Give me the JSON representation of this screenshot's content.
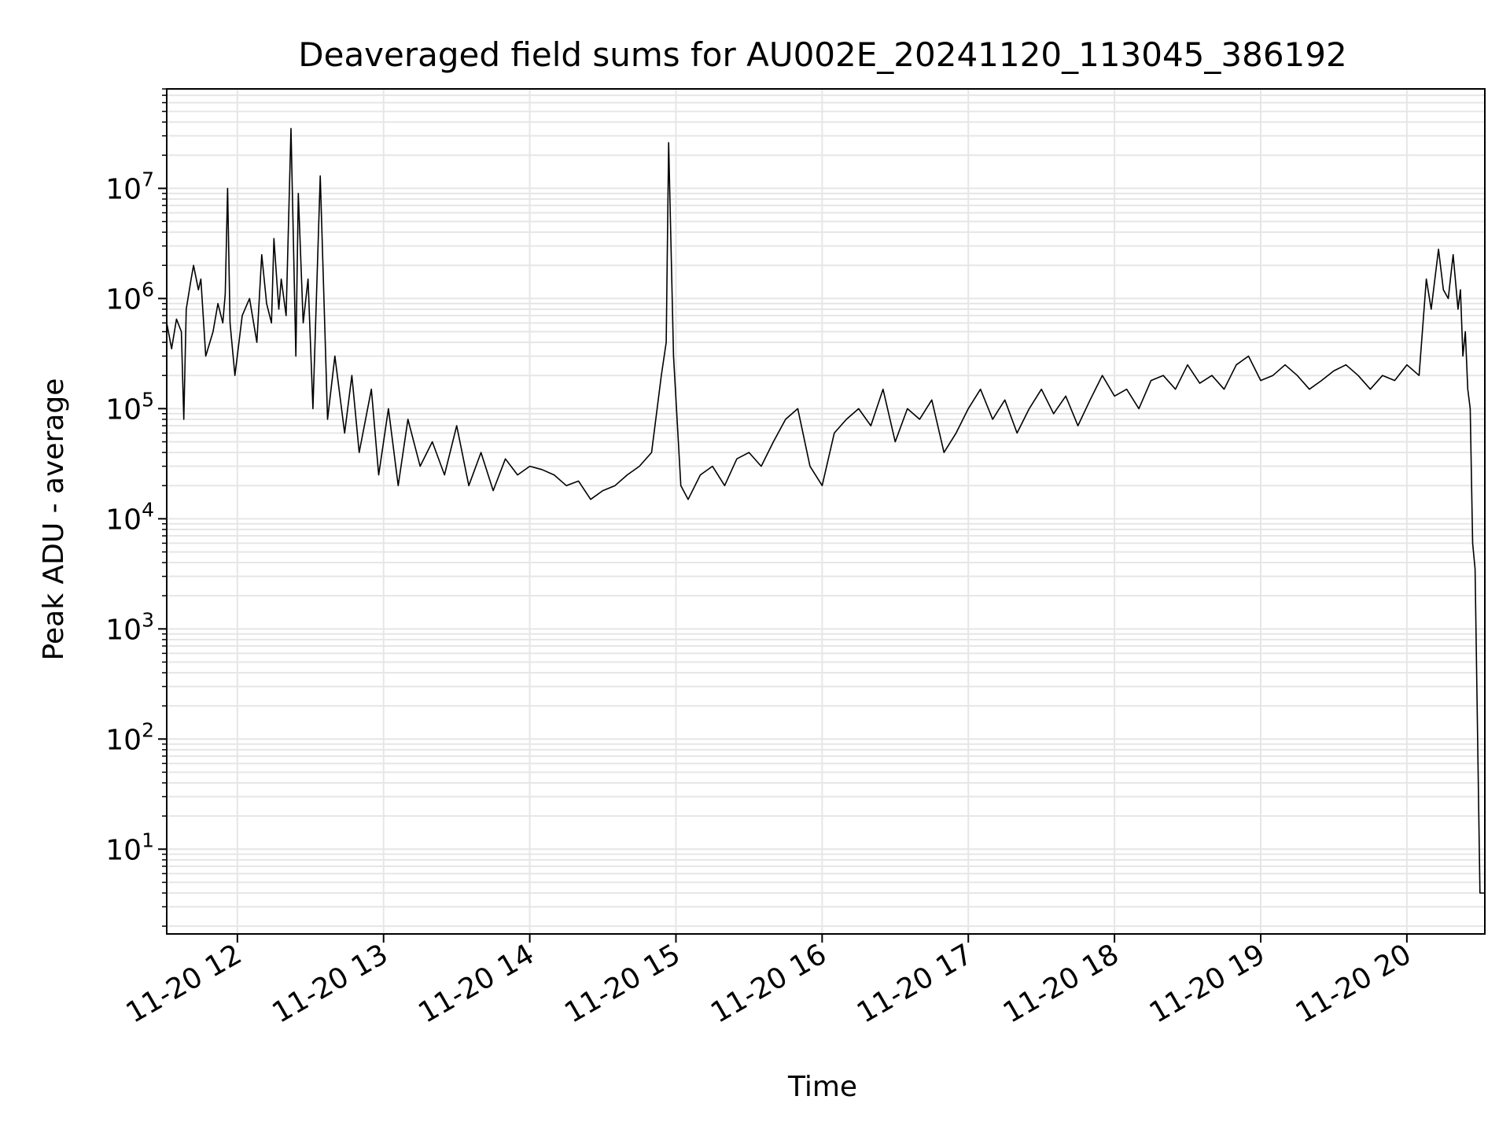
{
  "chart_data": {
    "type": "line",
    "title": "Deaveraged field sums for AU002E_20241120_113045_386192",
    "xlabel": "Time",
    "ylabel": "Peak ADU - average",
    "yscale": "log",
    "ylim": [
      1.7,
      80000000
    ],
    "xlim": [
      "2024-11-20 11:31",
      "2024-11-20 20:32"
    ],
    "grid": true,
    "line_color": "#000000",
    "grid_color": "#e6e6e6",
    "x_tick_labels": [
      "11-20 12",
      "11-20 13",
      "11-20 14",
      "11-20 15",
      "11-20 16",
      "11-20 17",
      "11-20 18",
      "11-20 19",
      "11-20 20"
    ],
    "x_tick_values": [
      "2024-11-20 12:00",
      "2024-11-20 13:00",
      "2024-11-20 14:00",
      "2024-11-20 15:00",
      "2024-11-20 16:00",
      "2024-11-20 17:00",
      "2024-11-20 18:00",
      "2024-11-20 19:00",
      "2024-11-20 20:00"
    ],
    "y_tick_values": [
      10,
      100,
      1000,
      10000,
      100000,
      1000000,
      10000000
    ],
    "y_tick_labels": [
      {
        "base": "10",
        "exp": "1"
      },
      {
        "base": "10",
        "exp": "2"
      },
      {
        "base": "10",
        "exp": "3"
      },
      {
        "base": "10",
        "exp": "4"
      },
      {
        "base": "10",
        "exp": "5"
      },
      {
        "base": "10",
        "exp": "6"
      },
      {
        "base": "10",
        "exp": "7"
      }
    ],
    "series": [
      {
        "x": [
          "2024-11-20 11:31",
          "2024-11-20 11:33",
          "2024-11-20 11:35",
          "2024-11-20 11:37",
          "2024-11-20 11:38",
          "2024-11-20 11:39",
          "2024-11-20 11:41",
          "2024-11-20 11:42",
          "2024-11-20 11:44",
          "2024-11-20 11:45",
          "2024-11-20 11:47",
          "2024-11-20 11:50",
          "2024-11-20 11:52",
          "2024-11-20 11:54",
          "2024-11-20 11:55",
          "2024-11-20 11:56",
          "2024-11-20 11:57",
          "2024-11-20 11:59",
          "2024-11-20 12:02",
          "2024-11-20 12:05",
          "2024-11-20 12:08",
          "2024-11-20 12:10",
          "2024-11-20 12:12",
          "2024-11-20 12:14",
          "2024-11-20 12:15",
          "2024-11-20 12:17",
          "2024-11-20 12:18",
          "2024-11-20 12:20",
          "2024-11-20 12:22",
          "2024-11-20 12:24",
          "2024-11-20 12:25",
          "2024-11-20 12:27",
          "2024-11-20 12:29",
          "2024-11-20 12:31",
          "2024-11-20 12:34",
          "2024-11-20 12:37",
          "2024-11-20 12:40",
          "2024-11-20 12:44",
          "2024-11-20 12:47",
          "2024-11-20 12:50",
          "2024-11-20 12:55",
          "2024-11-20 12:58",
          "2024-11-20 13:02",
          "2024-11-20 13:06",
          "2024-11-20 13:10",
          "2024-11-20 13:15",
          "2024-11-20 13:20",
          "2024-11-20 13:25",
          "2024-11-20 13:30",
          "2024-11-20 13:35",
          "2024-11-20 13:40",
          "2024-11-20 13:45",
          "2024-11-20 13:50",
          "2024-11-20 13:55",
          "2024-11-20 14:00",
          "2024-11-20 14:05",
          "2024-11-20 14:10",
          "2024-11-20 14:15",
          "2024-11-20 14:20",
          "2024-11-20 14:25",
          "2024-11-20 14:30",
          "2024-11-20 14:35",
          "2024-11-20 14:40",
          "2024-11-20 14:45",
          "2024-11-20 14:50",
          "2024-11-20 14:54",
          "2024-11-20 14:56",
          "2024-11-20 14:57",
          "2024-11-20 14:59",
          "2024-11-20 15:02",
          "2024-11-20 15:05",
          "2024-11-20 15:10",
          "2024-11-20 15:15",
          "2024-11-20 15:20",
          "2024-11-20 15:25",
          "2024-11-20 15:30",
          "2024-11-20 15:35",
          "2024-11-20 15:40",
          "2024-11-20 15:45",
          "2024-11-20 15:50",
          "2024-11-20 15:55",
          "2024-11-20 16:00",
          "2024-11-20 16:05",
          "2024-11-20 16:10",
          "2024-11-20 16:15",
          "2024-11-20 16:20",
          "2024-11-20 16:25",
          "2024-11-20 16:30",
          "2024-11-20 16:35",
          "2024-11-20 16:40",
          "2024-11-20 16:45",
          "2024-11-20 16:50",
          "2024-11-20 16:55",
          "2024-11-20 17:00",
          "2024-11-20 17:05",
          "2024-11-20 17:10",
          "2024-11-20 17:15",
          "2024-11-20 17:20",
          "2024-11-20 17:25",
          "2024-11-20 17:30",
          "2024-11-20 17:35",
          "2024-11-20 17:40",
          "2024-11-20 17:45",
          "2024-11-20 17:50",
          "2024-11-20 17:55",
          "2024-11-20 18:00",
          "2024-11-20 18:05",
          "2024-11-20 18:10",
          "2024-11-20 18:15",
          "2024-11-20 18:20",
          "2024-11-20 18:25",
          "2024-11-20 18:30",
          "2024-11-20 18:35",
          "2024-11-20 18:40",
          "2024-11-20 18:45",
          "2024-11-20 18:50",
          "2024-11-20 18:55",
          "2024-11-20 19:00",
          "2024-11-20 19:05",
          "2024-11-20 19:10",
          "2024-11-20 19:15",
          "2024-11-20 19:20",
          "2024-11-20 19:25",
          "2024-11-20 19:30",
          "2024-11-20 19:35",
          "2024-11-20 19:40",
          "2024-11-20 19:45",
          "2024-11-20 19:50",
          "2024-11-20 19:55",
          "2024-11-20 20:00",
          "2024-11-20 20:05",
          "2024-11-20 20:08",
          "2024-11-20 20:10",
          "2024-11-20 20:13",
          "2024-11-20 20:15",
          "2024-11-20 20:17",
          "2024-11-20 20:19",
          "2024-11-20 20:21",
          "2024-11-20 20:22",
          "2024-11-20 20:23",
          "2024-11-20 20:24",
          "2024-11-20 20:25",
          "2024-11-20 20:26",
          "2024-11-20 20:27",
          "2024-11-20 20:28",
          "2024-11-20 20:30",
          "2024-11-20 20:32"
        ],
        "y": [
          600000,
          350000,
          650000,
          500000,
          80000,
          800000,
          1500000,
          2000000,
          1200000,
          1500000,
          300000,
          500000,
          900000,
          600000,
          1100000,
          10000000,
          600000,
          200000,
          700000,
          1000000,
          400000,
          2500000,
          900000,
          600000,
          3500000,
          800000,
          1500000,
          700000,
          35000000,
          300000,
          9000000,
          600000,
          1500000,
          100000,
          13000000,
          80000,
          300000,
          60000,
          200000,
          40000,
          150000,
          25000,
          100000,
          20000,
          80000,
          30000,
          50000,
          25000,
          70000,
          20000,
          40000,
          18000,
          35000,
          25000,
          30000,
          28000,
          25000,
          20000,
          22000,
          15000,
          18000,
          20000,
          25000,
          30000,
          40000,
          200000,
          400000,
          26000000,
          300000,
          20000,
          15000,
          25000,
          30000,
          20000,
          35000,
          40000,
          30000,
          50000,
          80000,
          100000,
          30000,
          20000,
          60000,
          80000,
          100000,
          70000,
          150000,
          50000,
          100000,
          80000,
          120000,
          40000,
          60000,
          100000,
          150000,
          80000,
          120000,
          60000,
          100000,
          150000,
          90000,
          130000,
          70000,
          120000,
          200000,
          130000,
          150000,
          100000,
          180000,
          200000,
          150000,
          250000,
          170000,
          200000,
          150000,
          250000,
          300000,
          180000,
          200000,
          250000,
          200000,
          150000,
          180000,
          220000,
          250000,
          200000,
          150000,
          200000,
          180000,
          250000,
          200000,
          1500000,
          800000,
          2800000,
          1200000,
          1000000,
          2500000,
          800000,
          1200000,
          300000,
          500000,
          150000,
          100000,
          6000,
          3500,
          4,
          4
        ]
      }
    ]
  }
}
